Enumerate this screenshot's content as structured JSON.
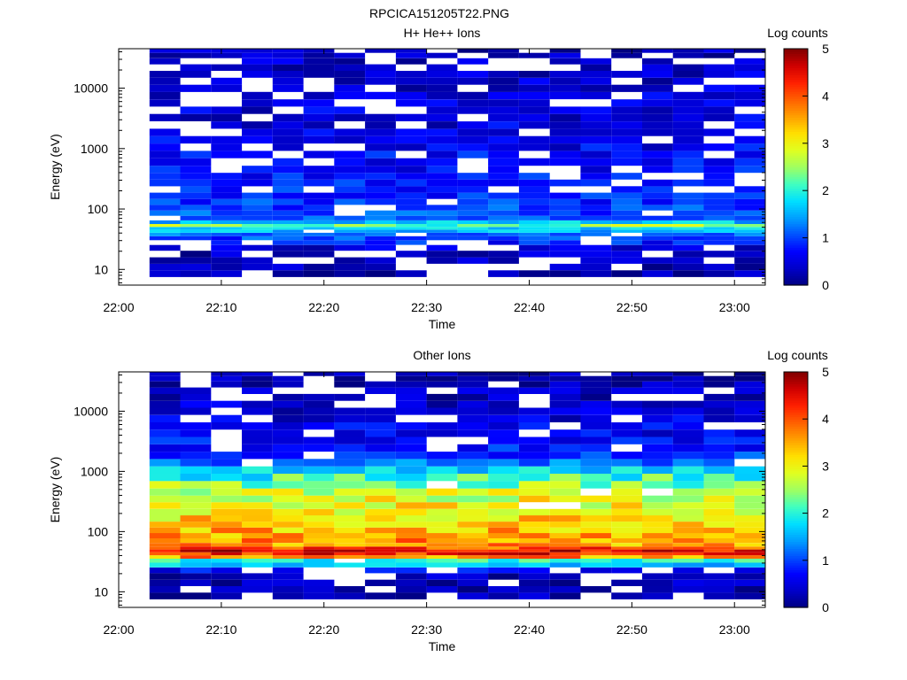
{
  "figure": {
    "title": "RPCICA151205T22.PNG"
  },
  "colormap": [
    "#000080",
    "#0000c8",
    "#0000ff",
    "#0050ff",
    "#00a0ff",
    "#00e0ff",
    "#40ffc0",
    "#a0ff60",
    "#e0ff20",
    "#ffe000",
    "#ffa000",
    "#ff6000",
    "#ff2000",
    "#d00000",
    "#800000"
  ],
  "chart_data": [
    {
      "type": "heatmap",
      "title": "H+ He++ Ions",
      "xlabel": "Time",
      "ylabel": "Energy (eV)",
      "x_ticks": [
        "22:00",
        "22:10",
        "22:20",
        "22:30",
        "22:40",
        "22:50",
        "23:00"
      ],
      "xlim": [
        "22:00",
        "23:03"
      ],
      "y_scale": "log",
      "y_ticks": [
        "10",
        "100",
        "1000",
        "10000"
      ],
      "ylim": [
        5.5,
        45000
      ],
      "x_columns": [
        "22:03",
        "22:06",
        "22:09",
        "22:12",
        "22:15",
        "22:18",
        "22:21",
        "22:24",
        "22:27",
        "22:30",
        "22:33",
        "22:36",
        "22:39",
        "22:42",
        "22:45",
        "22:48",
        "22:51",
        "22:54",
        "22:57",
        "23:00"
      ],
      "energy_bins_eV": [
        8.5,
        11,
        14,
        18,
        23,
        28,
        33,
        38,
        43,
        48,
        53,
        60,
        70,
        85,
        105,
        130,
        165,
        210,
        270,
        350,
        450,
        600,
        800,
        1050,
        1400,
        1850,
        2450,
        3250,
        4300,
        5700,
        7500,
        10000,
        13000,
        17000,
        22000,
        28000,
        35000,
        42000
      ],
      "log_counts_profile": [
        0.2,
        0.3,
        0.3,
        0.3,
        0.5,
        0.8,
        1.0,
        1.2,
        1.6,
        1.7,
        2.4,
        1.6,
        1.2,
        1.0,
        1.0,
        0.9,
        0.9,
        0.8,
        0.8,
        0.8,
        0.7,
        0.7,
        0.7,
        0.6,
        0.6,
        0.6,
        0.5,
        0.5,
        0.5,
        0.5,
        0.5,
        0.4,
        0.4,
        0.4,
        0.4,
        0.4,
        0.3,
        0.3
      ],
      "colorbar": {
        "label": "Log counts",
        "ticks": [
          "0",
          "1",
          "2",
          "3",
          "4",
          "5"
        ],
        "range": [
          0,
          5
        ]
      }
    },
    {
      "type": "heatmap",
      "title": "Other Ions",
      "xlabel": "Time",
      "ylabel": "Energy (eV)",
      "x_ticks": [
        "22:00",
        "22:10",
        "22:20",
        "22:30",
        "22:40",
        "22:50",
        "23:00"
      ],
      "xlim": [
        "22:00",
        "23:03"
      ],
      "y_scale": "log",
      "y_ticks": [
        "10",
        "100",
        "1000",
        "10000"
      ],
      "ylim": [
        5.5,
        45000
      ],
      "x_columns": [
        "22:03",
        "22:06",
        "22:09",
        "22:12",
        "22:15",
        "22:18",
        "22:21",
        "22:24",
        "22:27",
        "22:30",
        "22:33",
        "22:36",
        "22:39",
        "22:42",
        "22:45",
        "22:48",
        "22:51",
        "22:54",
        "22:57",
        "23:00"
      ],
      "energy_bins_eV": [
        8.5,
        11,
        14,
        18,
        23,
        28,
        33,
        38,
        43,
        48,
        53,
        60,
        70,
        85,
        105,
        130,
        165,
        210,
        270,
        350,
        450,
        600,
        800,
        1050,
        1400,
        1850,
        2450,
        3250,
        4300,
        5700,
        7500,
        10000,
        13000,
        17000,
        22000,
        28000,
        35000,
        42000
      ],
      "log_counts_profile": [
        0.2,
        0.3,
        0.3,
        0.3,
        0.7,
        1.6,
        2.0,
        3.6,
        4.3,
        4.5,
        4.0,
        3.6,
        3.6,
        3.5,
        3.4,
        3.3,
        3.2,
        3.1,
        3.0,
        2.9,
        2.7,
        2.4,
        2.1,
        1.7,
        1.2,
        0.9,
        0.8,
        0.7,
        0.6,
        0.6,
        0.5,
        0.4,
        0.4,
        0.3,
        0.3,
        0.2,
        0.2,
        0.2
      ],
      "colorbar": {
        "label": "Log counts",
        "ticks": [
          "0",
          "1",
          "2",
          "3",
          "4",
          "5"
        ],
        "range": [
          0,
          5
        ]
      }
    }
  ]
}
